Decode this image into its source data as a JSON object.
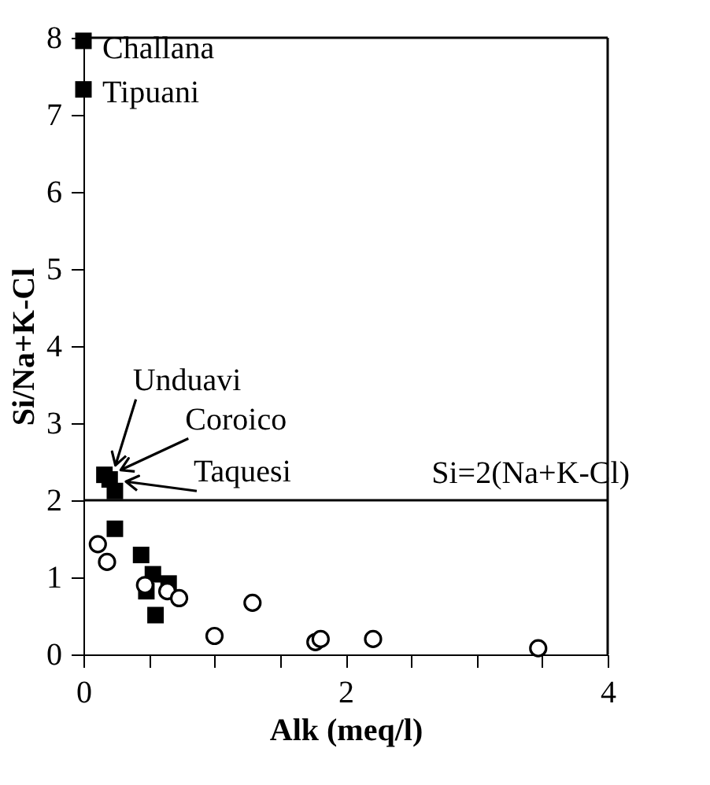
{
  "chart_data": {
    "type": "scatter",
    "xlabel": "Alk (meq/l)",
    "ylabel": "Si/Na+K-Cl",
    "xlim": [
      0,
      4
    ],
    "ylim": [
      0,
      8
    ],
    "xticks": [
      0,
      {
        "value": 0.5,
        "label": null
      },
      {
        "value": 1,
        "label": null
      },
      {
        "value": 1.5,
        "label": null
      },
      2,
      {
        "value": 2.5,
        "label": null
      },
      {
        "value": 3,
        "label": null
      },
      {
        "value": 3.5,
        "label": null
      },
      4
    ],
    "yticks": [
      0,
      1,
      2,
      3,
      4,
      5,
      6,
      7,
      8
    ],
    "grid": false,
    "series": [
      {
        "color": "#000000",
        "marker": "square",
        "x": [
          0,
          0,
          0.16,
          0.2,
          0.24,
          0.24,
          0.44,
          0.53,
          0.65,
          0.48,
          0.55
        ],
        "values": [
          7.96,
          7.33,
          2.33,
          2.27,
          2.12,
          1.63,
          1.29,
          1.04,
          0.92,
          0.82,
          0.51
        ]
      },
      {
        "color": "#000000",
        "marker": "circle",
        "x": [
          0.11,
          0.18,
          0.47,
          0.64,
          0.73,
          1.29,
          1.0,
          1.77,
          1.81,
          2.21,
          3.47
        ],
        "values": [
          1.43,
          1.2,
          0.9,
          0.82,
          0.73,
          0.67,
          0.24,
          0.16,
          0.2,
          0.2,
          0.08
        ]
      }
    ],
    "ref_lines": [
      {
        "axis": "y",
        "value": 2,
        "label": "Si=2(Na+K-Cl)",
        "color": "#000000"
      }
    ],
    "annotations": [
      {
        "text": "Challana",
        "x": 0,
        "y": 7.96
      },
      {
        "text": "Tipuani",
        "x": 0,
        "y": 7.33
      },
      {
        "text": "Unduavi",
        "x": 0.16,
        "y": 2.33
      },
      {
        "text": "Coroico",
        "x": 0.2,
        "y": 2.27
      },
      {
        "text": "Taquesi",
        "x": 0.24,
        "y": 2.12
      }
    ]
  }
}
